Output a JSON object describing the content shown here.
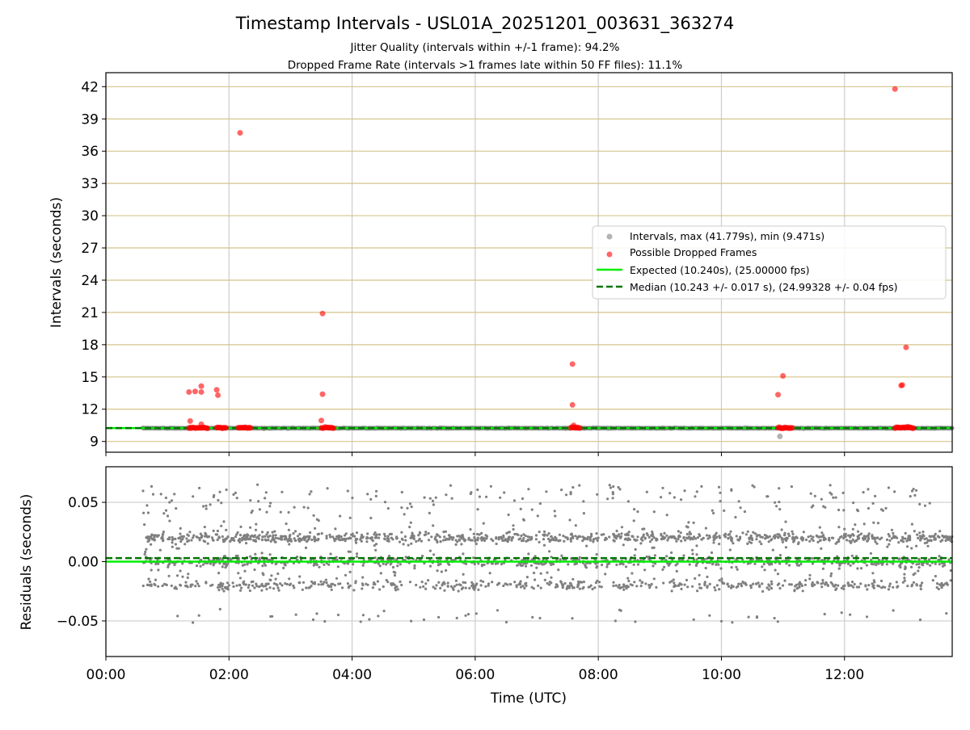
{
  "title": "Timestamp Intervals - USL01A_20251201_003631_363274",
  "subtitle1": "Jitter Quality (intervals within +/-1 frame): 94.2%",
  "subtitle2": "Dropped Frame Rate (intervals >1 frames late within 50 FF files): 11.1%",
  "colors": {
    "intervals": "#808080",
    "dropped": "#ff0000",
    "expected": "#00ee00",
    "median": "#007700",
    "hgrid_top": "#d4c48a",
    "grid": "#cccccc"
  },
  "chart_data": [
    {
      "type": "scatter",
      "ylabel": "Intervals (seconds)",
      "xlim": [
        0.0,
        13.75
      ],
      "ylim": [
        8.0,
        43.3
      ],
      "yticks": [
        9,
        12,
        15,
        18,
        21,
        24,
        27,
        30,
        33,
        36,
        39,
        42
      ],
      "xticks": [
        0,
        2,
        4,
        6,
        8,
        10,
        12
      ],
      "grid": true,
      "legend_position": "center-right",
      "legend": [
        "Intervals, max (41.779s), min (9.471s)",
        "Possible Dropped Frames",
        "Expected (10.240s), (25.00000 fps)",
        "Median (10.243 +/- 0.017 s), (24.99328 +/- 0.04 fps)"
      ],
      "series": [
        {
          "name": "Intervals, max (41.779s), min (9.471s)",
          "x_range_hours": [
            0.6,
            13.75
          ],
          "baseline": 10.24,
          "outliers": [
            {
              "x": 10.95,
              "y": 9.471
            }
          ]
        },
        {
          "name": "Possible Dropped Frames",
          "points": [
            {
              "x": 1.35,
              "y": 13.6
            },
            {
              "x": 1.45,
              "y": 13.65
            },
            {
              "x": 1.55,
              "y": 14.15
            },
            {
              "x": 1.55,
              "y": 13.6
            },
            {
              "x": 1.8,
              "y": 13.8
            },
            {
              "x": 1.82,
              "y": 13.3
            },
            {
              "x": 1.37,
              "y": 10.9
            },
            {
              "x": 1.55,
              "y": 10.6
            },
            {
              "x": 2.18,
              "y": 37.7
            },
            {
              "x": 3.52,
              "y": 20.9
            },
            {
              "x": 3.52,
              "y": 13.4
            },
            {
              "x": 3.5,
              "y": 10.95
            },
            {
              "x": 7.58,
              "y": 16.2
            },
            {
              "x": 7.58,
              "y": 12.4
            },
            {
              "x": 7.6,
              "y": 10.5
            },
            {
              "x": 10.92,
              "y": 13.35
            },
            {
              "x": 11.0,
              "y": 15.1
            },
            {
              "x": 12.82,
              "y": 41.779
            },
            {
              "x": 13.0,
              "y": 17.75
            },
            {
              "x": 12.92,
              "y": 14.2
            },
            {
              "x": 12.94,
              "y": 14.25
            }
          ],
          "clusters": [
            {
              "x_start": 1.35,
              "x_end": 1.65,
              "y": 10.28
            },
            {
              "x_start": 1.8,
              "x_end": 1.95,
              "y": 10.28
            },
            {
              "x_start": 2.15,
              "x_end": 2.35,
              "y": 10.28
            },
            {
              "x_start": 3.5,
              "x_end": 3.7,
              "y": 10.28
            },
            {
              "x_start": 7.55,
              "x_end": 7.7,
              "y": 10.28
            },
            {
              "x_start": 10.92,
              "x_end": 11.15,
              "y": 10.28
            },
            {
              "x_start": 12.82,
              "x_end": 13.12,
              "y": 10.28
            }
          ]
        },
        {
          "name": "Expected (10.240s), (25.00000 fps)",
          "y": 10.24
        },
        {
          "name": "Median (10.243 +/- 0.017 s), (24.99328 +/- 0.04 fps)",
          "y": 10.243
        }
      ]
    },
    {
      "type": "scatter",
      "xlabel": "Time (UTC)",
      "ylabel": "Residuals (seconds)",
      "xlim": [
        0.0,
        13.75
      ],
      "ylim": [
        -0.08,
        0.08
      ],
      "yticks": [
        -0.05,
        0.0,
        0.05
      ],
      "xticks": [
        0,
        2,
        4,
        6,
        8,
        10,
        12
      ],
      "grid": true,
      "series": [
        {
          "name": "Residuals",
          "x_range_hours": [
            0.6,
            13.75
          ],
          "levels": [
            -0.02,
            0.0,
            0.02
          ],
          "y_range": [
            -0.055,
            0.076
          ]
        },
        {
          "name": "Expected",
          "y": 0.0
        },
        {
          "name": "Median",
          "y": 0.003
        }
      ]
    }
  ]
}
